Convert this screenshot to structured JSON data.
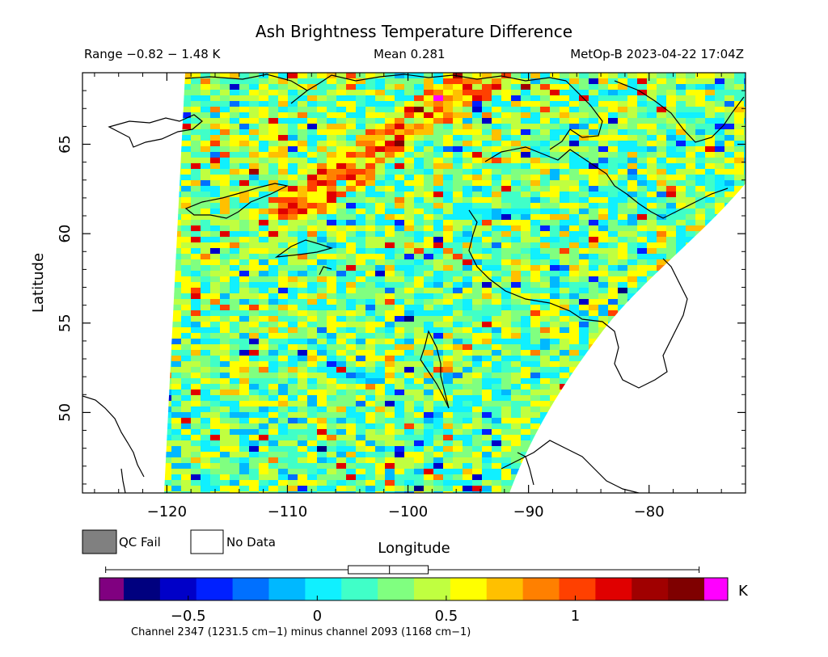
{
  "title": "Ash Brightness Temperature Difference",
  "range_text": "Range −0.82 − 1.48 K",
  "mean_text": "Mean 0.281",
  "satellite_text": "MetOp-B 2023-04-22 17:04Z",
  "map": {
    "lon_range": [
      -127,
      -72
    ],
    "lat_range": [
      45.5,
      69
    ],
    "x_axis_label": "Longitude",
    "y_axis_label": "Latitude",
    "x_ticks": [
      {
        "value": -120,
        "label": "−120"
      },
      {
        "value": -110,
        "label": "−110"
      },
      {
        "value": -100,
        "label": "−100"
      },
      {
        "value": -90,
        "label": "−90"
      },
      {
        "value": -80,
        "label": "−80"
      }
    ],
    "y_ticks": [
      {
        "value": 50,
        "label": "50"
      },
      {
        "value": 55,
        "label": "55"
      },
      {
        "value": 60,
        "label": "60"
      },
      {
        "value": 65,
        "label": "65"
      }
    ]
  },
  "legend": {
    "qc_fail_label": "QC Fail",
    "no_data_label": "No Data",
    "qc_fail_color": "#808080",
    "no_data_color": "#ffffff"
  },
  "colorbar": {
    "min": -0.75,
    "max": 1.5,
    "unit_label": "K",
    "ticks": [
      {
        "value": -0.5,
        "label": "−0.5"
      },
      {
        "value": 0,
        "label": "0"
      },
      {
        "value": 0.5,
        "label": "0.5"
      },
      {
        "value": 1,
        "label": "1"
      }
    ],
    "under_color": "#800080",
    "over_color": "#ff00ff",
    "colors": [
      "#00007f",
      "#0000c8",
      "#0020ff",
      "#0070ff",
      "#00b8ff",
      "#10f0ff",
      "#40ffc8",
      "#80ff80",
      "#c0ff40",
      "#ffff00",
      "#ffc000",
      "#ff8000",
      "#ff4000",
      "#e00000",
      "#a00000",
      "#7f0000"
    ],
    "caption": "Channel 2347 (1231.5 cm−1) minus channel 2093 (1168 cm−1)",
    "boxplot": {
      "min": -0.82,
      "q1": 0.12,
      "median": 0.28,
      "q3": 0.43,
      "max": 1.48
    }
  }
}
